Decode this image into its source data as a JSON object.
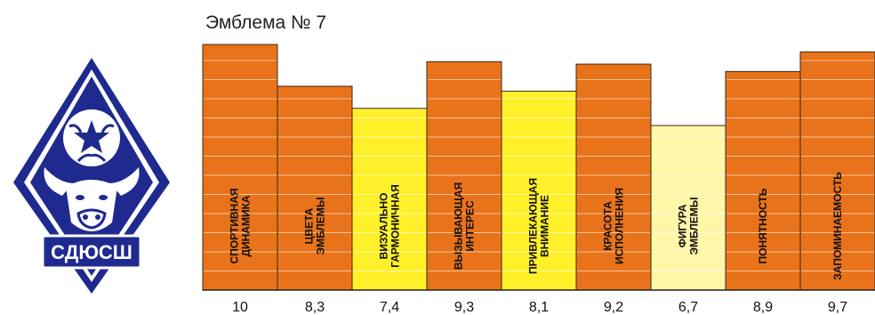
{
  "emblem": {
    "text": "СДЮСШ"
  },
  "chart_data": {
    "type": "bar",
    "title": "Эмблема № 7",
    "ylim": [
      0,
      10
    ],
    "categories": [
      [
        "СПОРТИВНАЯ",
        "ДИНАМИКА"
      ],
      [
        "ЦВЕТА",
        "ЭМБЛЕМЫ"
      ],
      [
        "ВИЗУАЛЬНО",
        "ГАРМОНИЧНАЯ"
      ],
      [
        "ВЫЗЫВАЮЩАЯ",
        "ИНТЕРЕС"
      ],
      [
        "ПРИВЛЕКАЮЩАЯ",
        "ВНИМАНИЕ"
      ],
      [
        "КРАСОТА",
        "ИСПОЛНЕНИЯ"
      ],
      [
        "ФИГУРА",
        "ЭМБЛЕМЫ"
      ],
      [
        "ПОНЯТНОСТЬ"
      ],
      [
        "ЗАПОМИНАЕМОСТЬ"
      ]
    ],
    "values": [
      10,
      8.3,
      7.4,
      9.3,
      8.1,
      9.2,
      6.7,
      8.9,
      9.7
    ],
    "value_labels": [
      "10",
      "8,3",
      "7,4",
      "9,3",
      "8,1",
      "9,2",
      "6,7",
      "8,9",
      "9,7"
    ],
    "bar_colors": [
      "#E8731A",
      "#E8731A",
      "#FFF02A",
      "#E8731A",
      "#FFF02A",
      "#E8731A",
      "#FFF6A8",
      "#E8731A",
      "#E8731A"
    ],
    "grid": true,
    "grid_color": "#ffffff",
    "axis_color": "#222222"
  }
}
